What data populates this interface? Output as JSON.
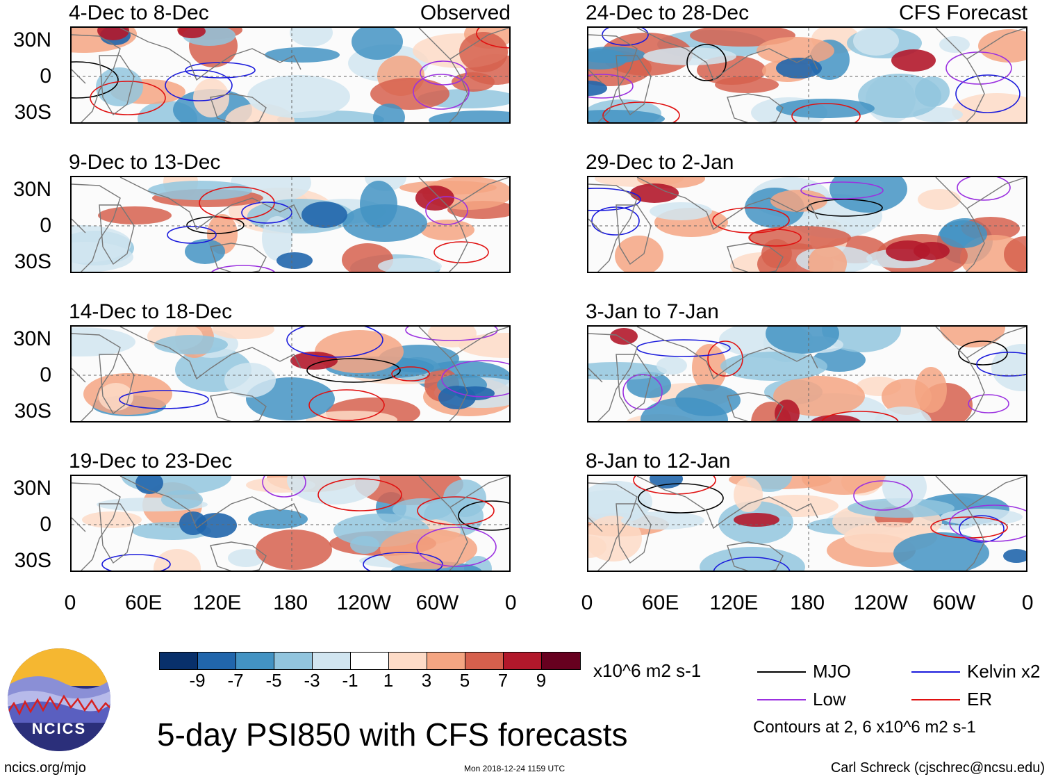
{
  "panels": {
    "left": [
      {
        "period": "4-Dec to 8-Dec",
        "tag": "Observed"
      },
      {
        "period": "9-Dec to 13-Dec",
        "tag": ""
      },
      {
        "period": "14-Dec to 18-Dec",
        "tag": ""
      },
      {
        "period": "19-Dec to 23-Dec",
        "tag": ""
      }
    ],
    "right": [
      {
        "period": "24-Dec to 28-Dec",
        "tag": "CFS Forecast"
      },
      {
        "period": "29-Dec to 2-Jan",
        "tag": ""
      },
      {
        "period": "3-Jan to 7-Jan",
        "tag": ""
      },
      {
        "period": "8-Jan to 12-Jan",
        "tag": ""
      }
    ]
  },
  "lat_labels": [
    "30N",
    "0",
    "30S"
  ],
  "lon_labels": [
    "0",
    "60E",
    "120E",
    "180",
    "120W",
    "60W",
    "0"
  ],
  "colorbar": {
    "colors": [
      "#08306b",
      "#2166ac",
      "#4393c3",
      "#92c5de",
      "#d1e5f0",
      "#ffffff",
      "#fddbc7",
      "#f4a582",
      "#d6604d",
      "#b2182b",
      "#67001f"
    ],
    "ticks": [
      "-9",
      "-7",
      "-5",
      "-3",
      "-1",
      "1",
      "3",
      "5",
      "7",
      "9"
    ],
    "units": "x10^6 m2 s-1"
  },
  "legend": {
    "items": [
      {
        "label": "MJO",
        "color": "#000000"
      },
      {
        "label": "Kelvin x2",
        "color": "#1a1adc"
      },
      {
        "label": "Low",
        "color": "#9b30e0"
      },
      {
        "label": "ER",
        "color": "#e01010"
      }
    ],
    "contours_note": "Contours at 2, 6 x10^6 m2 s-1"
  },
  "title": "5-day PSI850 with CFS forecasts",
  "logo_text": "NCICS",
  "footer": {
    "url": "ncics.org/mjo",
    "timestamp": "Mon 2018-12-24 1159 UTC",
    "credit": "Carl Schreck (cjschrec@ncsu.edu)"
  }
}
